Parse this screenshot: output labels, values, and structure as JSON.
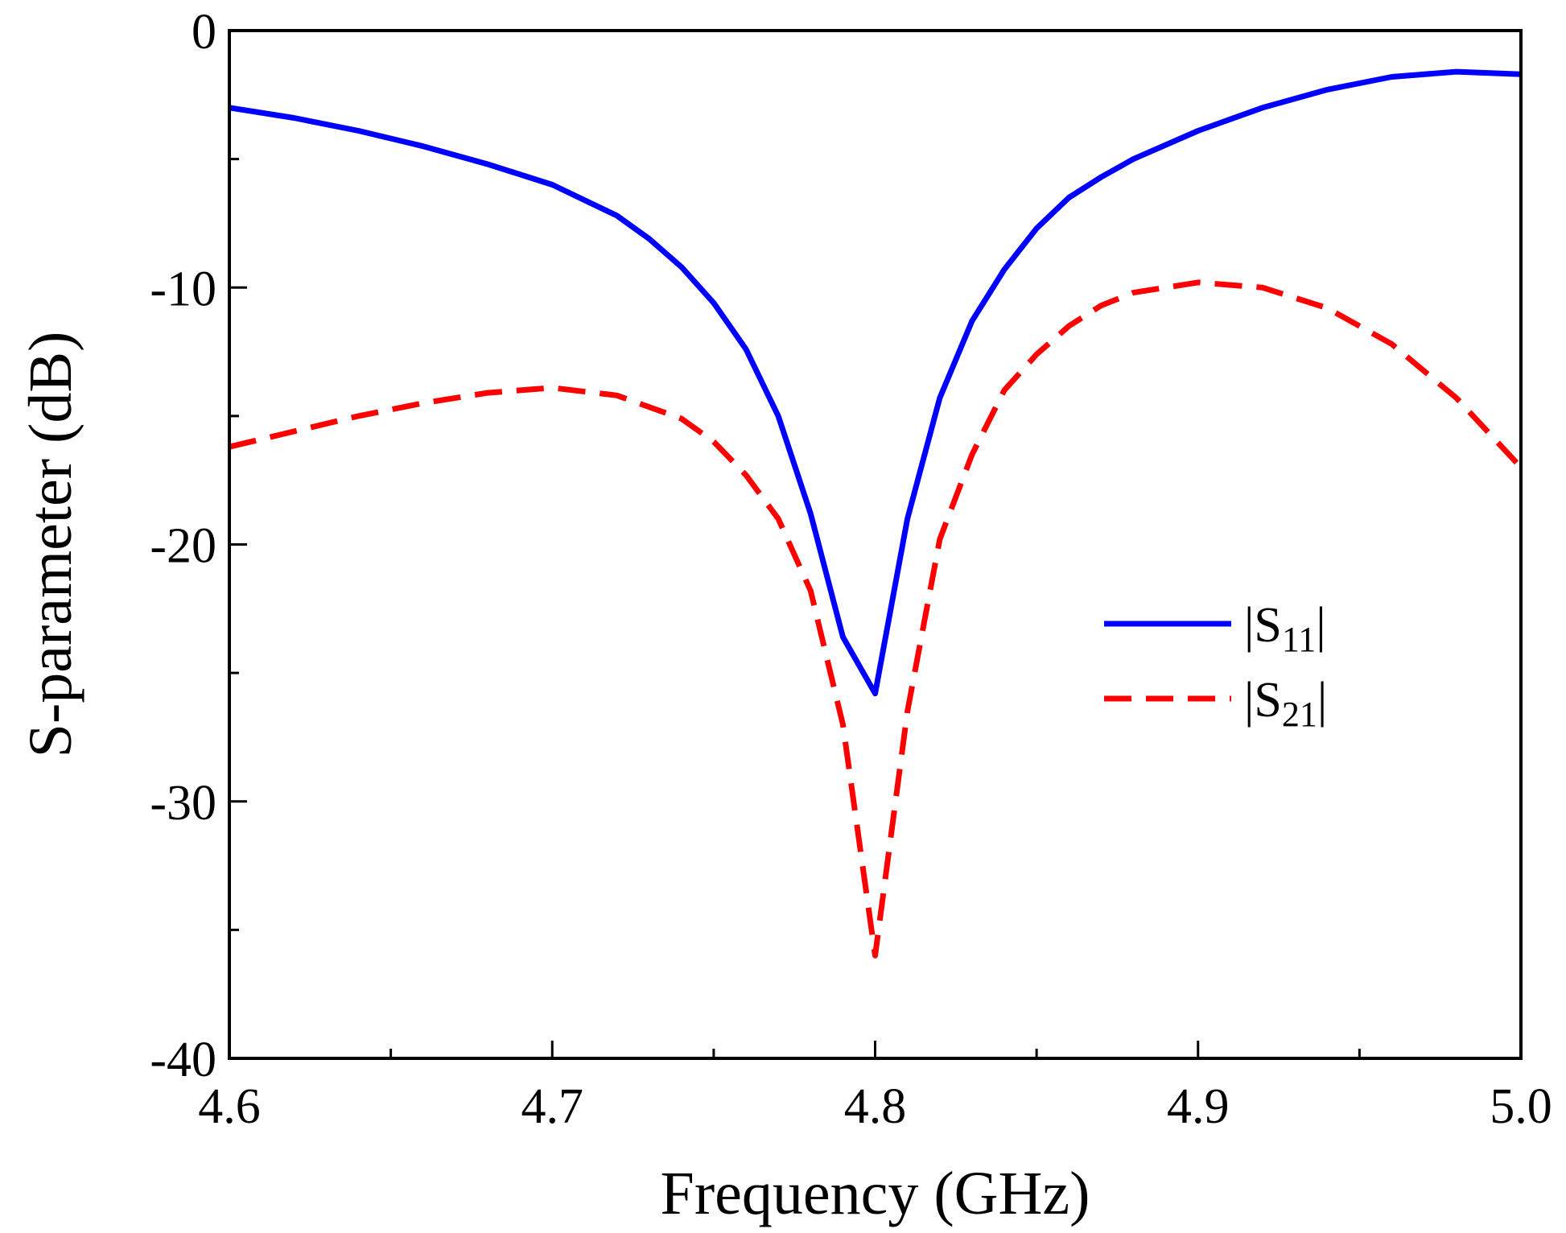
{
  "chart_data": {
    "type": "line",
    "title": "",
    "xlabel": "Frequency (GHz)",
    "ylabel": "S-parameter (dB)",
    "xlim": [
      4.6,
      5.0
    ],
    "ylim": [
      -40,
      0
    ],
    "xticks": [
      "4.6",
      "4.7",
      "4.8",
      "4.9",
      "5.0"
    ],
    "yticks": [
      "0",
      "-10",
      "-20",
      "-30",
      "-40"
    ],
    "grid": false,
    "legend_position": "center-right",
    "series": [
      {
        "name": "|S11|",
        "label_base": "|S",
        "label_sub": "11",
        "label_end": "|",
        "color": "#0000ff",
        "style": "solid",
        "x": [
          4.6,
          4.62,
          4.64,
          4.66,
          4.68,
          4.7,
          4.72,
          4.73,
          4.74,
          4.75,
          4.76,
          4.77,
          4.78,
          4.79,
          4.8,
          4.81,
          4.82,
          4.83,
          4.84,
          4.85,
          4.86,
          4.87,
          4.88,
          4.9,
          4.92,
          4.94,
          4.96,
          4.98,
          5.0
        ],
        "y": [
          -3.0,
          -3.4,
          -3.9,
          -4.5,
          -5.2,
          -6.0,
          -7.2,
          -8.1,
          -9.2,
          -10.6,
          -12.4,
          -15.0,
          -18.8,
          -23.6,
          -25.8,
          -19.0,
          -14.3,
          -11.3,
          -9.3,
          -7.7,
          -6.5,
          -5.7,
          -5.0,
          -3.9,
          -3.0,
          -2.3,
          -1.8,
          -1.6,
          -1.7
        ]
      },
      {
        "name": "|S21|",
        "label_base": "|S",
        "label_sub": "21",
        "label_end": "|",
        "color": "#ff0000",
        "style": "dashed",
        "x": [
          4.6,
          4.62,
          4.64,
          4.66,
          4.68,
          4.7,
          4.72,
          4.74,
          4.75,
          4.76,
          4.77,
          4.78,
          4.79,
          4.8,
          4.81,
          4.82,
          4.83,
          4.84,
          4.85,
          4.86,
          4.87,
          4.88,
          4.9,
          4.92,
          4.94,
          4.96,
          4.98,
          5.0
        ],
        "y": [
          -16.2,
          -15.6,
          -15.0,
          -14.5,
          -14.1,
          -13.9,
          -14.2,
          -15.1,
          -16.0,
          -17.3,
          -19.0,
          -21.8,
          -27.0,
          -36.0,
          -26.5,
          -19.8,
          -16.5,
          -14.0,
          -12.6,
          -11.5,
          -10.7,
          -10.2,
          -9.8,
          -10.0,
          -10.8,
          -12.2,
          -14.3,
          -17.0
        ]
      }
    ]
  }
}
